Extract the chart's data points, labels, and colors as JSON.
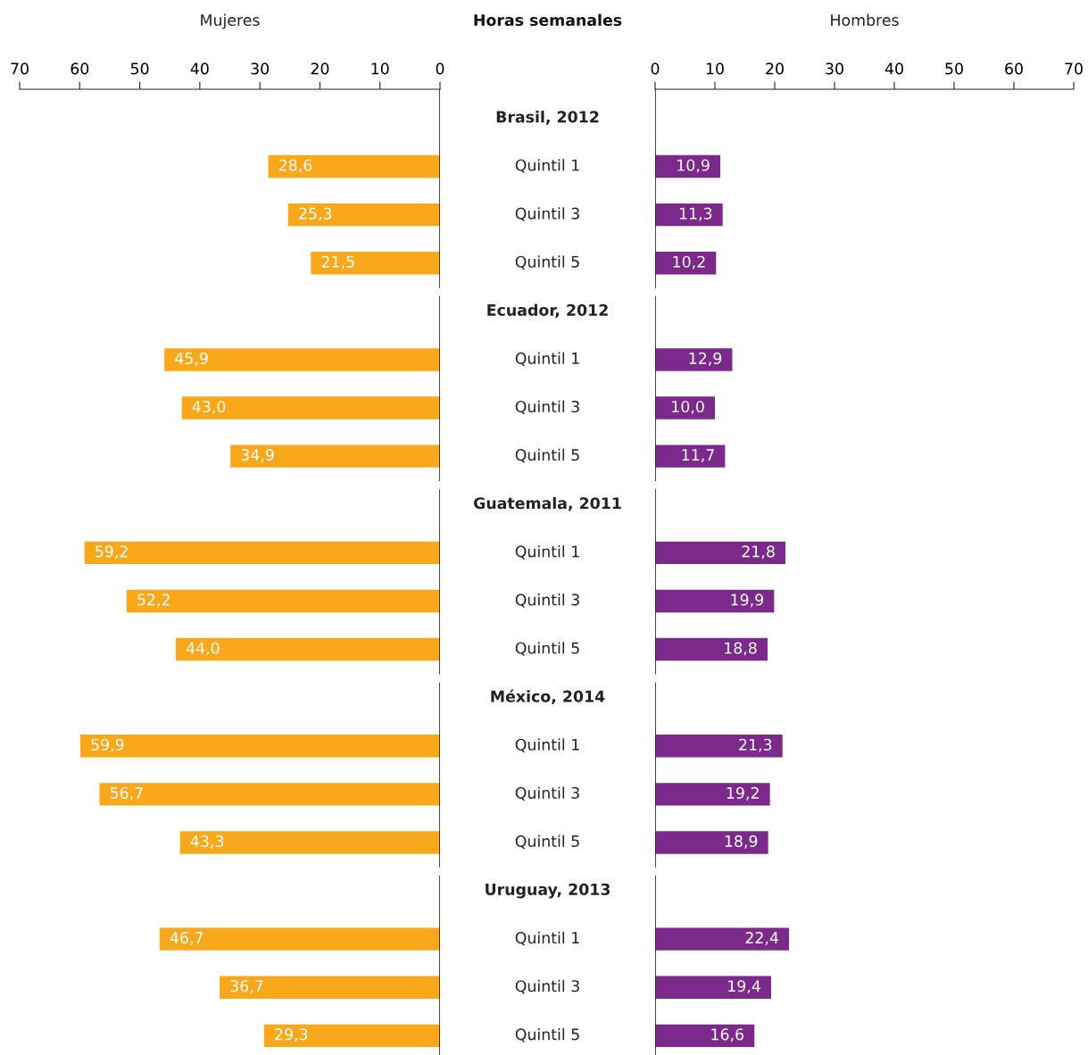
{
  "chart_data": [
    {
      "type": "bar",
      "orientation": "horizontal",
      "title": "Horas semanales",
      "xlabel": "Mujeres",
      "categories": [
        "Brasil, 2012",
        "Quintil 1",
        "Quintil 3",
        "Quintil 5",
        "Ecuador, 2012",
        "Quintil 1",
        "Quintil 3",
        "Quintil 5",
        "Guatemala, 2011",
        "Quintil 1",
        "Quintil 3",
        "Quintil 5",
        "México, 2014",
        "Quintil 1",
        "Quintil 3",
        "Quintil 5",
        "Uruguay, 2013",
        "Quintil 1",
        "Quintil 3",
        "Quintil 5"
      ],
      "values": [
        null,
        28.6,
        25.3,
        21.5,
        null,
        45.9,
        43.0,
        34.9,
        null,
        59.2,
        52.2,
        44.0,
        null,
        59.9,
        56.7,
        43.3,
        null,
        46.7,
        36.7,
        29.3
      ],
      "value_labels": [
        null,
        "28,6",
        "25,3",
        "21,5",
        null,
        "45,9",
        "43,0",
        "34,9",
        null,
        "59,2",
        "52,2",
        "44,0",
        null,
        "59,9",
        "56,7",
        "43,3",
        null,
        "46,7",
        "36,7",
        "29,3"
      ],
      "color": "#f9a81b",
      "xlim": [
        70,
        0
      ],
      "xticks": [
        70,
        60,
        50,
        40,
        30,
        20,
        10,
        0
      ],
      "grid": false,
      "legend": false
    },
    {
      "type": "bar",
      "orientation": "horizontal",
      "xlabel": "Hombres",
      "values": [
        null,
        10.9,
        11.3,
        10.2,
        null,
        12.9,
        10.0,
        11.7,
        null,
        21.8,
        19.9,
        18.8,
        null,
        21.3,
        19.2,
        18.9,
        null,
        22.4,
        19.4,
        16.6
      ],
      "value_labels": [
        null,
        "10,9",
        "11,3",
        "10,2",
        null,
        "12,9",
        "10,0",
        "11,7",
        null,
        "21,8",
        "19,9",
        "18,8",
        null,
        "21,3",
        "19,2",
        "18,9",
        null,
        "22,4",
        "19,4",
        "16,6"
      ],
      "color": "#7b2a8c",
      "xlim": [
        0,
        70
      ],
      "xticks": [
        0,
        10,
        20,
        30,
        40,
        50,
        60,
        70
      ],
      "grid": false,
      "legend": false
    }
  ]
}
